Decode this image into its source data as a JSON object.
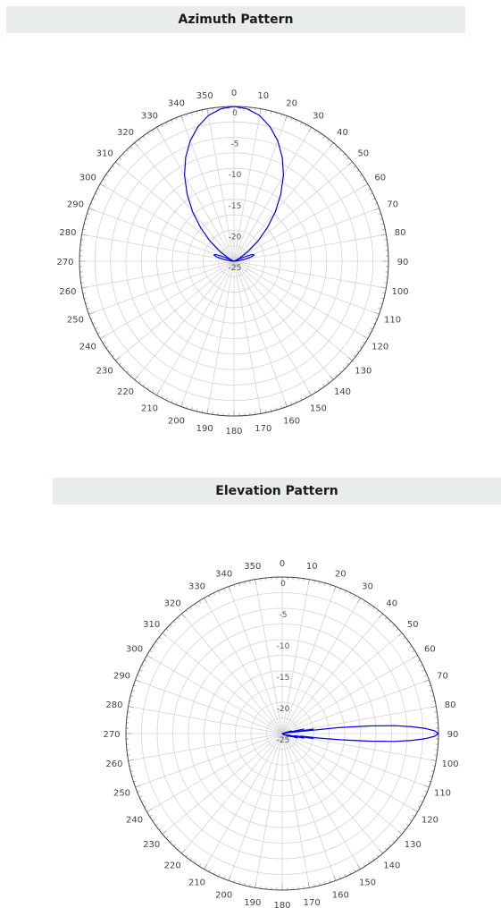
{
  "chart_data": [
    {
      "type": "polar-line",
      "title": "Azimuth Pattern",
      "angle_ticks": [
        "0",
        "10",
        "20",
        "30",
        "40",
        "50",
        "60",
        "70",
        "80",
        "90",
        "100",
        "110",
        "120",
        "130",
        "140",
        "150",
        "160",
        "170",
        "180",
        "190",
        "200",
        "210",
        "220",
        "230",
        "240",
        "250",
        "260",
        "270",
        "280",
        "290",
        "300",
        "310",
        "320",
        "330",
        "340",
        "350"
      ],
      "radial_ticks": [
        "0",
        "-5",
        "-10",
        "-15",
        "-20",
        "-25"
      ],
      "rlim": [
        -25,
        0
      ],
      "angular_unit": "degrees",
      "direction": "clockwise",
      "zero_location": "top",
      "grid": true,
      "series": [
        {
          "theta": [
            0,
            5,
            10,
            15,
            20,
            25,
            30,
            35,
            40,
            45,
            50,
            55,
            60,
            62,
            64,
            66,
            67,
            68,
            70,
            73,
            76,
            80,
            85,
            90,
            100,
            120,
            150,
            180,
            210,
            240,
            260,
            270,
            275,
            280,
            284,
            287,
            290,
            292,
            293,
            294,
            296,
            298,
            300,
            305,
            310,
            315,
            320,
            325,
            330,
            335,
            340,
            345,
            350,
            355,
            360
          ],
          "r": [
            0,
            -0.3,
            -1.1,
            -2.5,
            -4.3,
            -6.5,
            -9.0,
            -11.8,
            -14.6,
            -17.4,
            -20.0,
            -22.2,
            -23.9,
            -24.4,
            -24.8,
            -25.0,
            -23.5,
            -22.6,
            -21.8,
            -21.6,
            -22.1,
            -23.3,
            -24.6,
            -25.0,
            -25.0,
            -25.0,
            -25.0,
            -25.0,
            -25.0,
            -25.0,
            -25.0,
            -25.0,
            -24.6,
            -23.3,
            -22.1,
            -21.6,
            -21.8,
            -22.6,
            -23.5,
            -25.0,
            -24.8,
            -24.4,
            -23.9,
            -22.2,
            -20.0,
            -17.4,
            -14.6,
            -11.8,
            -9.0,
            -6.5,
            -4.3,
            -2.5,
            -1.1,
            -0.3,
            0
          ]
        }
      ]
    },
    {
      "type": "polar-line",
      "title": "Elevation Pattern",
      "angle_ticks": [
        "0",
        "10",
        "20",
        "30",
        "40",
        "50",
        "60",
        "70",
        "80",
        "90",
        "100",
        "110",
        "120",
        "130",
        "140",
        "150",
        "160",
        "170",
        "180",
        "190",
        "200",
        "210",
        "220",
        "230",
        "240",
        "250",
        "260",
        "270",
        "280",
        "290",
        "300",
        "310",
        "320",
        "330",
        "340",
        "350"
      ],
      "radial_ticks": [
        "0",
        "-5",
        "-10",
        "-15",
        "-20",
        "-25"
      ],
      "rlim": [
        -25,
        0
      ],
      "angular_unit": "degrees",
      "direction": "clockwise",
      "zero_location": "top",
      "grid": true,
      "series": [
        {
          "theta": [
            0,
            70,
            74,
            76,
            78,
            80,
            82,
            83,
            84,
            85,
            86,
            87,
            88,
            89,
            90,
            91,
            92,
            93,
            94,
            95,
            96,
            97,
            98,
            99,
            100,
            102,
            104,
            106,
            108,
            110,
            112,
            114,
            116,
            118,
            120,
            125,
            130,
            135,
            140,
            180,
            270,
            360
          ],
          "r": [
            -25.0,
            -25.0,
            -23.5,
            -24.8,
            -21.5,
            -24.6,
            -20.0,
            -23.5,
            -16.0,
            -11.0,
            -7.0,
            -4.2,
            -2.0,
            -0.6,
            0.0,
            -0.6,
            -2.0,
            -4.2,
            -7.0,
            -11.0,
            -15.5,
            -19.0,
            -22.0,
            -20.0,
            -23.0,
            -21.5,
            -24.0,
            -22.5,
            -24.3,
            -23.5,
            -24.6,
            -24.0,
            -24.8,
            -24.5,
            -25.0,
            -24.6,
            -25.0,
            -24.8,
            -25.0,
            -25.0,
            -25.0,
            -25.0
          ]
        }
      ]
    }
  ],
  "colors": {
    "series": "#0000ee",
    "grid": "#d4d4d4",
    "outer_ring": "#444444",
    "header_bg": "#e8ecec"
  }
}
